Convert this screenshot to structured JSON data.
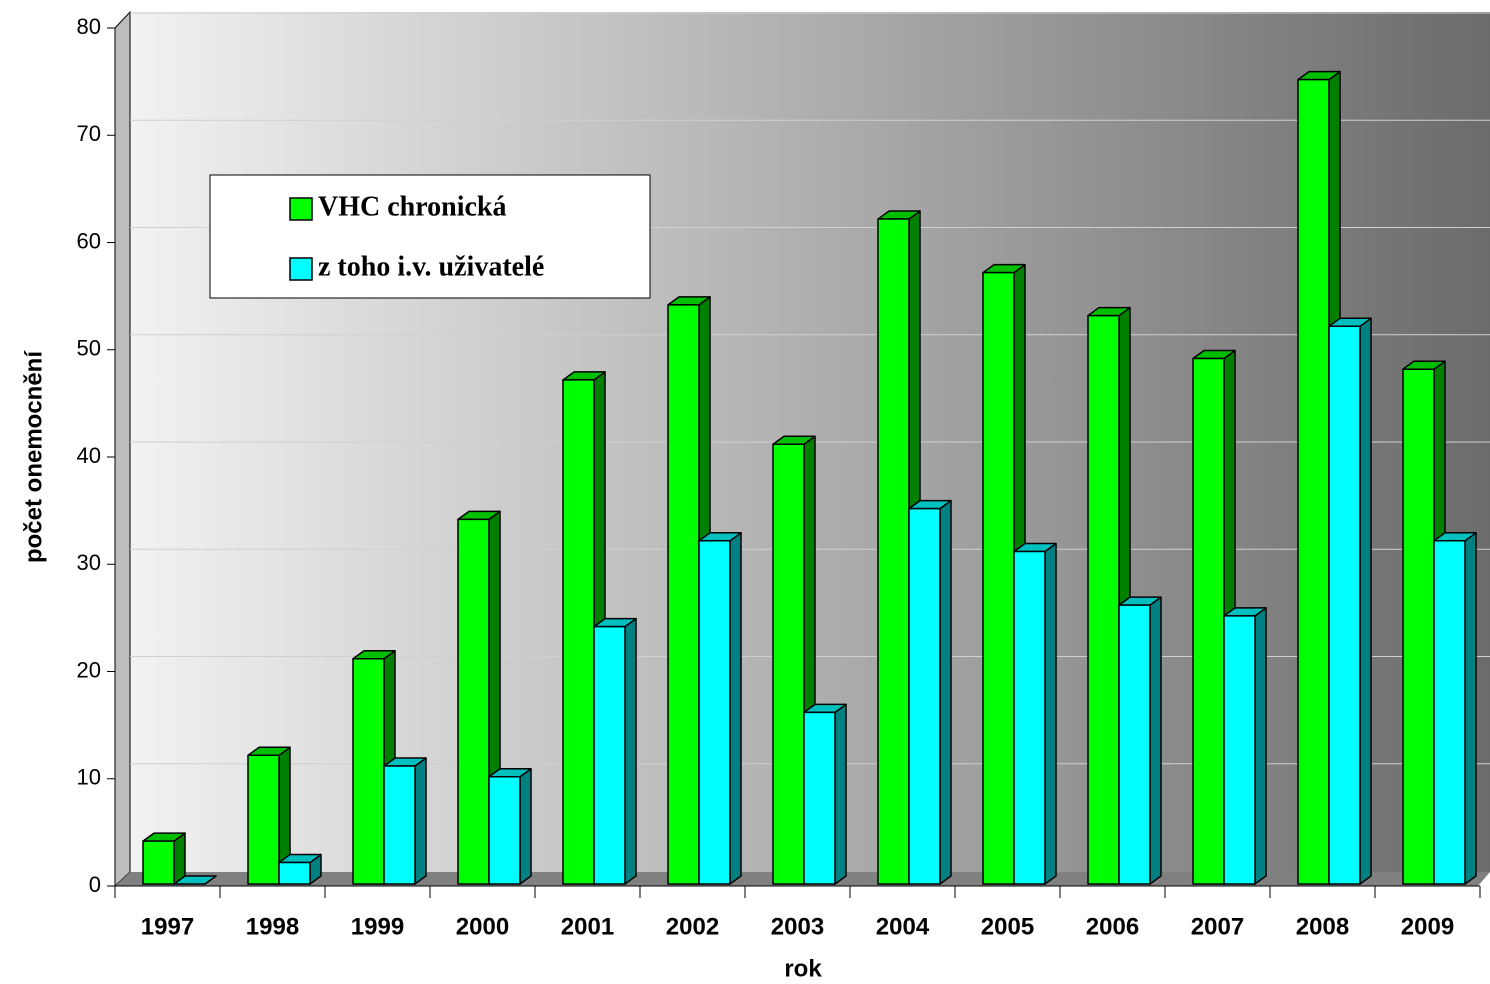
{
  "chart_data": {
    "type": "bar3d",
    "x_label": "rok",
    "y_label": "počet onemocnění",
    "categories": [
      "1997",
      "1998",
      "1999",
      "2000",
      "2001",
      "2002",
      "2003",
      "2004",
      "2005",
      "2006",
      "2007",
      "2008",
      "2009"
    ],
    "series": [
      {
        "name": "VHC chronická",
        "color": "#00ff00",
        "values": [
          4,
          12,
          21,
          34,
          47,
          54,
          41,
          62,
          57,
          53,
          49,
          75,
          48
        ]
      },
      {
        "name": "z toho i.v. uživatelé",
        "color": "#00ffff",
        "values": [
          0,
          2,
          11,
          10,
          24,
          32,
          16,
          35,
          31,
          26,
          25,
          52,
          32
        ]
      }
    ],
    "ylim": [
      0,
      80
    ],
    "yticks": [
      0,
      10,
      20,
      30,
      40,
      50,
      60,
      70,
      80
    ],
    "grid": true
  }
}
